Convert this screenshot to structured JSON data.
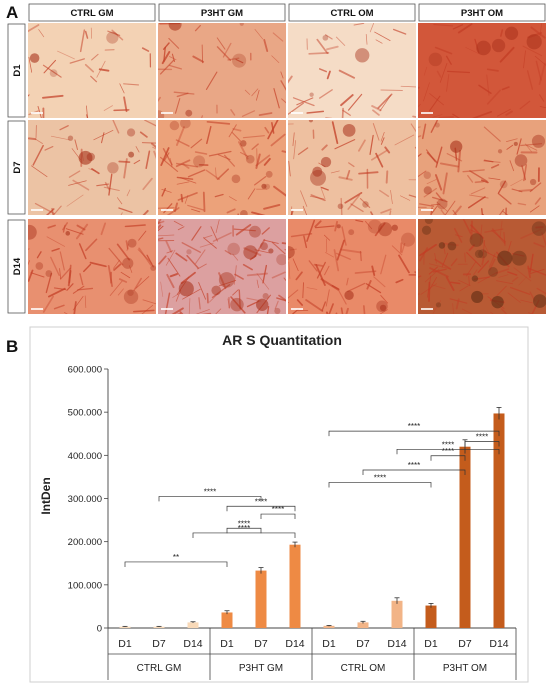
{
  "panel_a": {
    "label": "A",
    "columns": [
      "CTRL GM",
      "P3HT GM",
      "CTRL OM",
      "P3HT OM"
    ],
    "rows": [
      "D1",
      "D7",
      "D14"
    ],
    "tiles": [
      [
        "#f3d2b4",
        "#e9a786",
        "#f5dcc6",
        "#d2573a"
      ],
      [
        "#ecc3a4",
        "#eca27a",
        "#eec0a0",
        "#e8a27c"
      ],
      [
        "#e89070",
        "#dca0a0",
        "#e98a68",
        "#b85a34"
      ]
    ],
    "stain_color": "#c33c24"
  },
  "panel_b": {
    "label": "B"
  },
  "chart_data": {
    "type": "bar",
    "title": "AR S Quantitation",
    "ylabel": "IntDen",
    "xlabel": "",
    "ylim": [
      0,
      600000
    ],
    "y_ticks": [
      "0",
      "100.000",
      "200.000",
      "300.000",
      "400.000",
      "500.000",
      "600.000"
    ],
    "y_tick_values": [
      0,
      100000,
      200000,
      300000,
      400000,
      500000,
      600000
    ],
    "days": [
      "D1",
      "D7",
      "D14"
    ],
    "groups": [
      {
        "label": "CTRL GM",
        "values": [
          3000,
          3000,
          13000
        ],
        "errors": [
          800,
          800,
          1500
        ],
        "color": "#f8d9b8"
      },
      {
        "label": "P3HT GM",
        "values": [
          36000,
          133000,
          193000
        ],
        "errors": [
          4000,
          7000,
          6000
        ],
        "color": "#ee8a44"
      },
      {
        "label": "CTRL OM",
        "values": [
          5000,
          13000,
          63000
        ],
        "errors": [
          1000,
          2500,
          7000
        ],
        "color": "#f2b487"
      },
      {
        "label": "P3HT OM",
        "values": [
          52000,
          420000,
          497000
        ],
        "errors": [
          5000,
          16000,
          14000
        ],
        "color": "#c45c1c"
      }
    ],
    "significance": [
      {
        "from": [
          0,
          0
        ],
        "to": [
          1,
          0
        ],
        "level": 255000,
        "label": "**"
      },
      {
        "from": [
          0,
          2
        ],
        "to": [
          1,
          2
        ],
        "level": 367000,
        "label": "****"
      },
      {
        "from": [
          1,
          0
        ],
        "to": [
          1,
          1
        ],
        "level": 385000,
        "label": "****"
      },
      {
        "from": [
          1,
          1
        ],
        "to": [
          1,
          2
        ],
        "level": 440000,
        "label": "****"
      },
      {
        "from": [
          1,
          0
        ],
        "to": [
          1,
          2
        ],
        "level": 470000,
        "label": "****"
      },
      {
        "from": [
          0,
          1
        ],
        "to": [
          1,
          1
        ],
        "level": 508000,
        "label": "****"
      },
      {
        "from": [
          2,
          0
        ],
        "to": [
          3,
          0
        ],
        "level": 562000,
        "label": "****"
      },
      {
        "from": [
          2,
          1
        ],
        "to": [
          3,
          1
        ],
        "level": 610000,
        "label": "****"
      },
      {
        "from": [
          3,
          0
        ],
        "to": [
          3,
          1
        ],
        "level": 665000,
        "label": "****"
      },
      {
        "from": [
          2,
          2
        ],
        "to": [
          3,
          2
        ],
        "level": 690000,
        "label": "****"
      },
      {
        "from": [
          3,
          1
        ],
        "to": [
          3,
          2
        ],
        "level": 720000,
        "label": "****"
      },
      {
        "from": [
          2,
          0
        ],
        "to": [
          3,
          2
        ],
        "level": 760000,
        "label": "****"
      }
    ]
  }
}
